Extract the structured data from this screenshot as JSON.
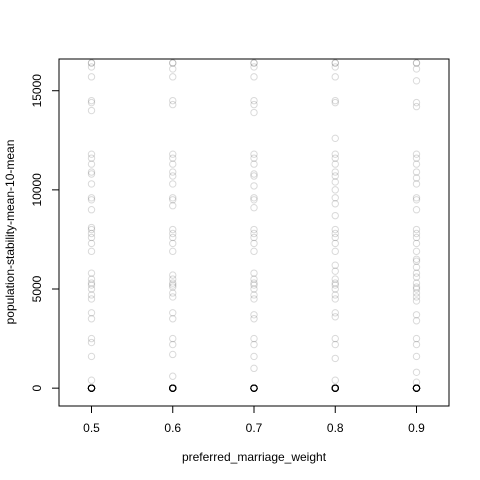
{
  "chart_data": {
    "type": "scatter",
    "xlabel": "preferred_marriage_weight",
    "ylabel": "population-stability-mean-10-mean",
    "xlim": [
      0.46,
      0.94
    ],
    "ylim": [
      -900,
      16600
    ],
    "x_ticks": [
      0.5,
      0.6,
      0.7,
      0.8,
      0.9
    ],
    "x_tick_labels": [
      "0.5",
      "0.6",
      "0.7",
      "0.8",
      "0.9"
    ],
    "y_ticks": [
      0,
      5000,
      10000,
      15000
    ],
    "y_tick_labels": [
      "0",
      "5000",
      "10000",
      "15000"
    ],
    "grid": false,
    "marker": "open-circle",
    "point_color": "#000000",
    "point_alpha": 0.15,
    "series": [
      {
        "x": 0.5,
        "y": [
          0,
          0,
          0,
          0,
          0,
          0,
          0,
          0,
          0,
          0,
          0,
          0,
          0,
          0,
          0,
          0,
          0,
          0,
          0,
          0,
          0,
          0,
          0,
          0,
          0,
          0,
          0,
          0,
          0,
          0,
          0,
          0,
          0,
          0,
          0,
          0,
          0,
          0,
          0,
          0,
          400,
          1600,
          2300,
          2500,
          3500,
          3800,
          4500,
          4700,
          5000,
          5200,
          5300,
          5500,
          5800,
          6900,
          7300,
          7600,
          7800,
          8000,
          8100,
          9000,
          9500,
          9600,
          10300,
          10800,
          10900,
          11300,
          11600,
          11800,
          14000,
          14400,
          14500,
          15700,
          16200,
          16400,
          16400
        ]
      },
      {
        "x": 0.6,
        "y": [
          0,
          0,
          0,
          0,
          0,
          0,
          0,
          0,
          0,
          0,
          0,
          0,
          0,
          0,
          0,
          0,
          0,
          0,
          0,
          0,
          0,
          0,
          0,
          0,
          0,
          0,
          0,
          0,
          0,
          0,
          0,
          0,
          0,
          0,
          0,
          0,
          0,
          0,
          0,
          0,
          600,
          1700,
          2200,
          2500,
          3500,
          3800,
          4600,
          4800,
          5100,
          5200,
          5300,
          5500,
          5700,
          6900,
          7300,
          7600,
          7800,
          8000,
          9200,
          9500,
          9600,
          10300,
          10700,
          10900,
          11300,
          11600,
          11800,
          14300,
          14500,
          15700,
          16100,
          16400,
          16400
        ]
      },
      {
        "x": 0.7,
        "y": [
          0,
          0,
          0,
          0,
          0,
          0,
          0,
          0,
          0,
          0,
          0,
          0,
          0,
          0,
          0,
          0,
          0,
          0,
          0,
          0,
          0,
          0,
          0,
          0,
          0,
          0,
          0,
          0,
          0,
          0,
          0,
          0,
          0,
          0,
          0,
          0,
          0,
          0,
          0,
          0,
          1000,
          1600,
          2200,
          2500,
          3500,
          3700,
          4500,
          4700,
          5000,
          5200,
          5300,
          5500,
          5800,
          6900,
          7300,
          7600,
          7800,
          8000,
          9100,
          9500,
          9600,
          10200,
          10700,
          10800,
          11300,
          11600,
          11800,
          13900,
          14300,
          14500,
          15700,
          16200,
          16400,
          16400
        ]
      },
      {
        "x": 0.8,
        "y": [
          0,
          0,
          0,
          0,
          0,
          0,
          0,
          0,
          0,
          0,
          0,
          0,
          0,
          0,
          0,
          0,
          0,
          0,
          0,
          0,
          0,
          0,
          0,
          0,
          0,
          0,
          0,
          0,
          0,
          0,
          0,
          0,
          0,
          0,
          0,
          0,
          0,
          0,
          0,
          0,
          400,
          1500,
          2200,
          2500,
          3600,
          3800,
          4500,
          4700,
          5000,
          5200,
          5300,
          5500,
          5900,
          6200,
          6900,
          7300,
          7600,
          7800,
          8000,
          8700,
          9300,
          9600,
          10000,
          10400,
          10700,
          10900,
          11300,
          11600,
          11800,
          12600,
          14400,
          14500,
          15700,
          16200,
          16400,
          16400
        ]
      },
      {
        "x": 0.9,
        "y": [
          0,
          0,
          0,
          0,
          0,
          0,
          0,
          0,
          0,
          0,
          0,
          0,
          0,
          0,
          0,
          0,
          0,
          0,
          0,
          0,
          0,
          0,
          0,
          0,
          0,
          0,
          0,
          0,
          0,
          0,
          0,
          0,
          0,
          0,
          0,
          0,
          0,
          0,
          0,
          0,
          300,
          800,
          1600,
          2200,
          2500,
          3400,
          3700,
          4400,
          4600,
          4800,
          5000,
          5100,
          5300,
          5600,
          5800,
          6100,
          6400,
          6500,
          6900,
          7300,
          7600,
          7800,
          8000,
          9000,
          9500,
          9600,
          10300,
          10600,
          10900,
          11300,
          11600,
          11800,
          14200,
          14400,
          15500,
          16100,
          16400,
          16400
        ]
      }
    ]
  }
}
